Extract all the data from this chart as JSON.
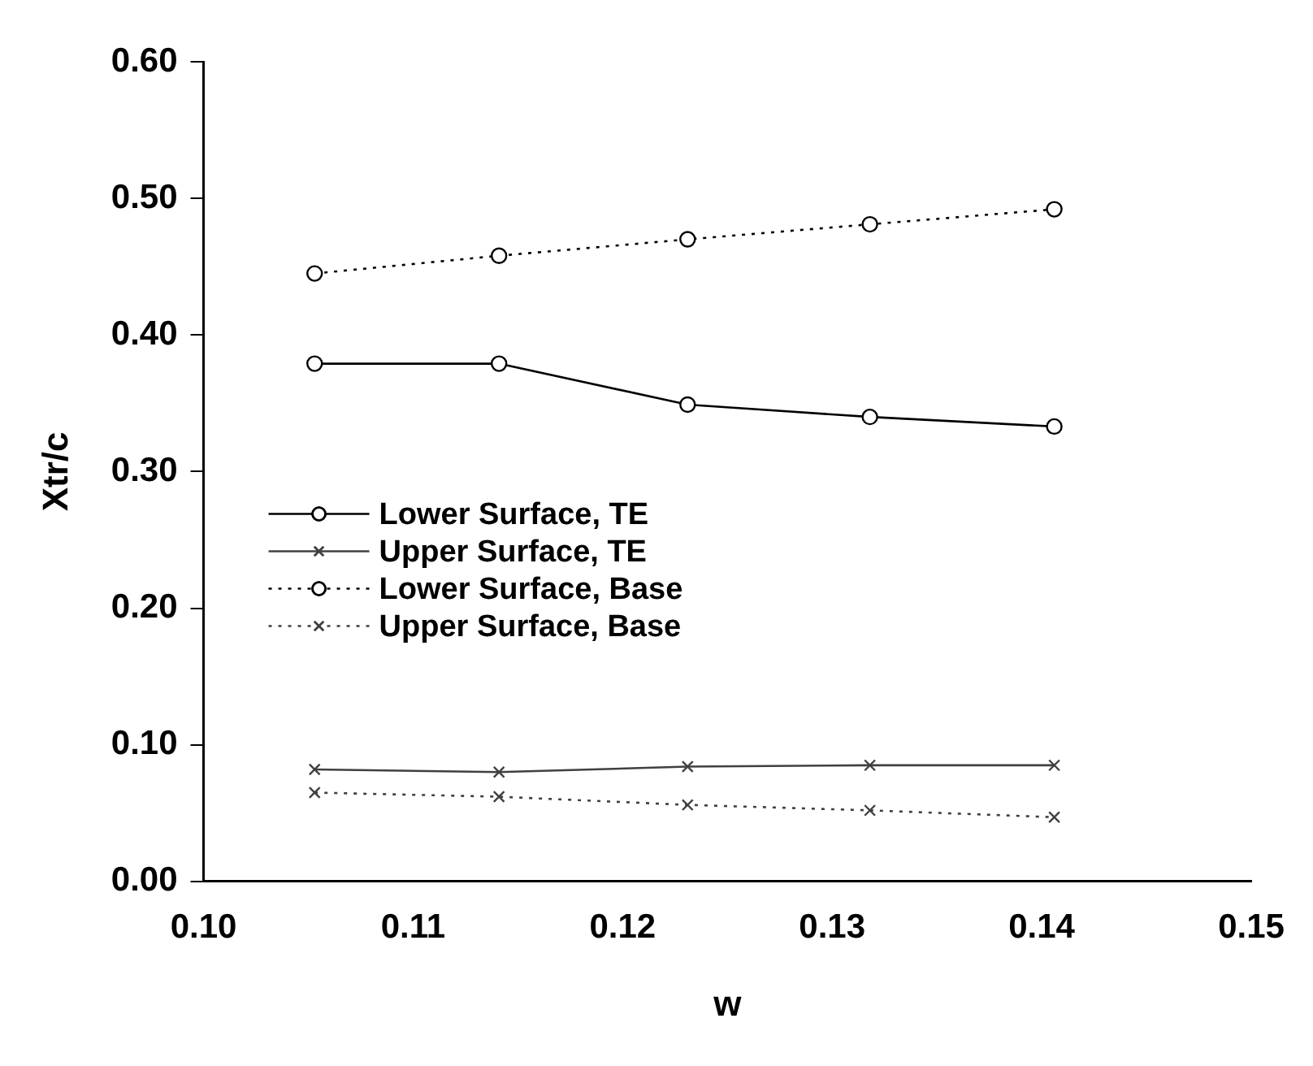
{
  "chart_data": {
    "type": "line",
    "xlabel": "w",
    "ylabel": "Xtr/c",
    "xlim": [
      0.1,
      0.15
    ],
    "xticks": [
      {
        "value": 0.1,
        "label": "0.10"
      },
      {
        "value": 0.11,
        "label": "0.11"
      },
      {
        "value": 0.12,
        "label": "0.12"
      },
      {
        "value": 0.13,
        "label": "0.13"
      },
      {
        "value": 0.14,
        "label": "0.14"
      },
      {
        "value": 0.15,
        "label": "0.15"
      }
    ],
    "ylim": [
      0,
      0.6
    ],
    "yticks": [
      {
        "value": 0,
        "label": "0.00"
      },
      {
        "value": 0.1,
        "label": "0.10"
      },
      {
        "value": 0.2,
        "label": "0.20"
      },
      {
        "value": 0.3,
        "label": "0.30"
      },
      {
        "value": 0.4,
        "label": "0.40"
      },
      {
        "value": 0.5,
        "label": "0.50"
      },
      {
        "value": 0.6,
        "label": "0.60"
      }
    ],
    "x": [
      0.1053,
      0.1141,
      0.1231,
      0.1318,
      0.1406
    ],
    "grid": false,
    "legend": "left",
    "series": [
      {
        "name": "Lower Surface, TE",
        "color": "#000000",
        "marker": "circle",
        "line_style": "solid",
        "values": [
          0.379,
          0.379,
          0.349,
          0.34,
          0.333
        ]
      },
      {
        "name": "Upper Surface, TE",
        "color": "#404040",
        "marker": "cross",
        "line_style": "solid",
        "values": [
          0.082,
          0.08,
          0.084,
          0.085,
          0.085
        ]
      },
      {
        "name": "Lower Surface, Base",
        "color": "#000000",
        "marker": "circle",
        "line_style": "dotted",
        "values": [
          0.445,
          0.458,
          0.47,
          0.481,
          0.492
        ]
      },
      {
        "name": "Upper Surface, Base",
        "color": "#404040",
        "marker": "cross",
        "line_style": "dotted",
        "values": [
          0.065,
          0.062,
          0.056,
          0.052,
          0.047
        ]
      }
    ]
  }
}
